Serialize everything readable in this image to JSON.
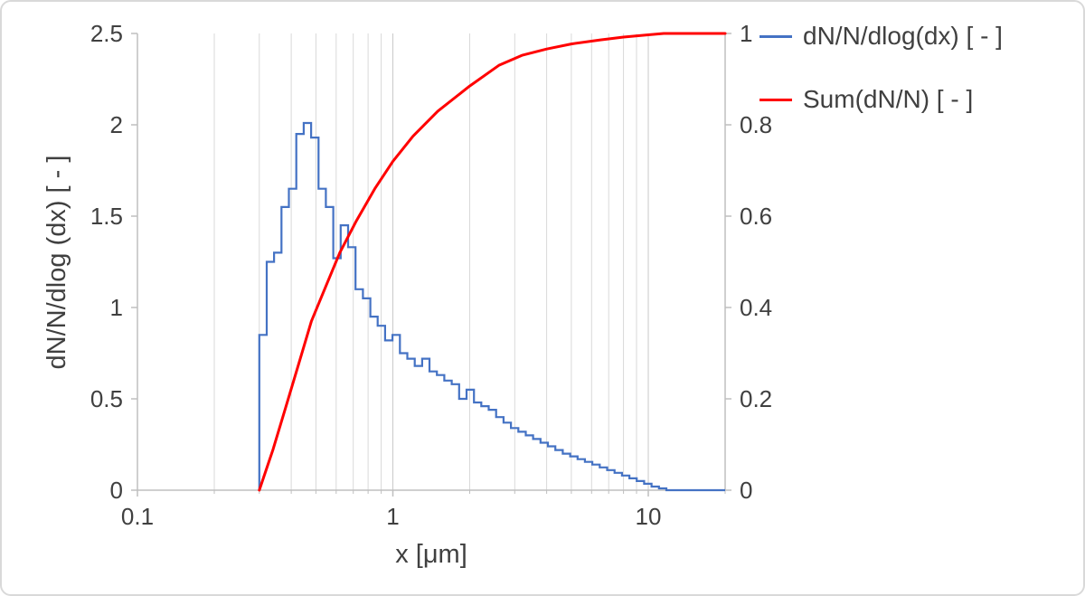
{
  "chart_data": {
    "type": "line",
    "title": "",
    "x_axis": {
      "label": "x [μm]",
      "scale": "log",
      "min": 0.1,
      "max": 20,
      "major_ticks": [
        "0.1",
        "1",
        "10"
      ],
      "major_tick_values": [
        0.1,
        1,
        10
      ],
      "minor_gridlines": [
        0.2,
        0.3,
        0.4,
        0.5,
        0.6,
        0.7,
        0.8,
        0.9,
        2,
        3,
        4,
        5,
        6,
        7,
        8,
        9,
        20
      ],
      "major_gridlines": [
        1,
        10
      ]
    },
    "y_axis_left": {
      "label": "dN/N/dlog (dx) [ - ]",
      "min": 0,
      "max": 2.5,
      "ticks": [
        "0",
        "0.5",
        "1",
        "1.5",
        "2",
        "2.5"
      ],
      "tick_values": [
        0,
        0.5,
        1,
        1.5,
        2,
        2.5
      ]
    },
    "y_axis_right": {
      "label": "",
      "min": 0,
      "max": 1,
      "ticks": [
        "0",
        "0.2",
        "0.4",
        "0.6",
        "0.8",
        "1"
      ],
      "tick_values": [
        0,
        0.2,
        0.4,
        0.6,
        0.8,
        1
      ]
    },
    "series": [
      {
        "name": "dN/N/dlog(dx) [ - ]",
        "color": "#4472C4",
        "axis": "left",
        "style": "step",
        "bins": {
          "x_start": 0.3,
          "bin_ratio": 1.069,
          "flat_end": 20,
          "values": [
            0.85,
            1.25,
            1.3,
            1.55,
            1.65,
            1.95,
            2.01,
            1.93,
            1.65,
            1.55,
            1.27,
            1.45,
            1.33,
            1.1,
            1.05,
            0.95,
            0.9,
            0.82,
            0.85,
            0.75,
            0.72,
            0.68,
            0.72,
            0.65,
            0.63,
            0.6,
            0.58,
            0.5,
            0.55,
            0.48,
            0.46,
            0.44,
            0.4,
            0.37,
            0.34,
            0.32,
            0.3,
            0.28,
            0.26,
            0.24,
            0.22,
            0.2,
            0.185,
            0.17,
            0.155,
            0.14,
            0.125,
            0.11,
            0.095,
            0.08,
            0.065,
            0.05,
            0.035,
            0.02,
            0.01
          ]
        }
      },
      {
        "name": "Sum(dN/N) [ - ]",
        "color": "#FF0000",
        "axis": "right",
        "style": "line",
        "points": [
          [
            0.3,
            0
          ],
          [
            0.34,
            0.09
          ],
          [
            0.38,
            0.18
          ],
          [
            0.43,
            0.28
          ],
          [
            0.48,
            0.37
          ],
          [
            0.55,
            0.45
          ],
          [
            0.62,
            0.52
          ],
          [
            0.72,
            0.59
          ],
          [
            0.85,
            0.66
          ],
          [
            1.0,
            0.72
          ],
          [
            1.2,
            0.775
          ],
          [
            1.5,
            0.83
          ],
          [
            2.0,
            0.885
          ],
          [
            2.6,
            0.93
          ],
          [
            3.2,
            0.952
          ],
          [
            4.0,
            0.966
          ],
          [
            5.0,
            0.977
          ],
          [
            6.5,
            0.986
          ],
          [
            8.0,
            0.992
          ],
          [
            10.0,
            0.997
          ],
          [
            11.5,
            1.0
          ],
          [
            20,
            1.0
          ]
        ]
      }
    ],
    "colors": {
      "grid_minor": "#d9d9d9",
      "grid_major": "#c9c9c9",
      "axis_line": "#bfbfbf",
      "text": "#404040"
    }
  },
  "legend": {
    "items": [
      {
        "label": "dN/N/dlog(dx) [ - ]",
        "color": "#4472C4"
      },
      {
        "label": "Sum(dN/N) [ - ]",
        "color": "#FF0000"
      }
    ]
  }
}
